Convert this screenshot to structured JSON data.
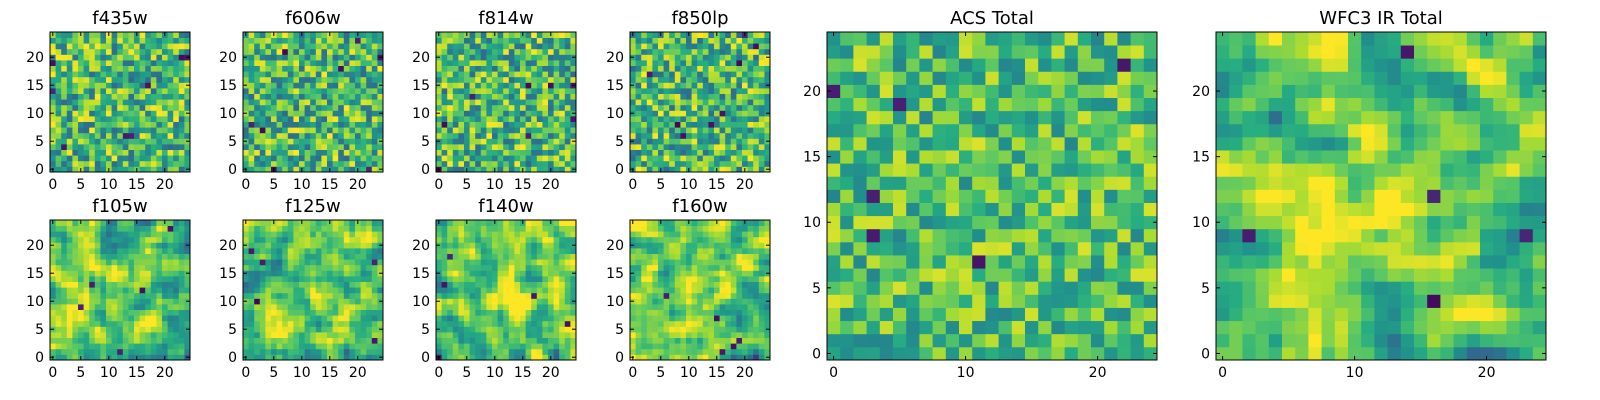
{
  "chart_data": [
    {
      "type": "heatmap",
      "title": "f435w",
      "xlim": [
        0,
        24
      ],
      "ylim": [
        0,
        24
      ],
      "xticks": [
        0,
        5,
        10,
        15,
        20
      ],
      "yticks": [
        0,
        5,
        10,
        15,
        20
      ],
      "seed": 11,
      "style": "noise",
      "colormap": "viridis"
    },
    {
      "type": "heatmap",
      "title": "f606w",
      "xlim": [
        0,
        24
      ],
      "ylim": [
        0,
        24
      ],
      "xticks": [
        0,
        5,
        10,
        15,
        20
      ],
      "yticks": [
        0,
        5,
        10,
        15,
        20
      ],
      "seed": 23,
      "style": "noise",
      "colormap": "viridis"
    },
    {
      "type": "heatmap",
      "title": "f814w",
      "xlim": [
        0,
        24
      ],
      "ylim": [
        0,
        24
      ],
      "xticks": [
        0,
        5,
        10,
        15,
        20
      ],
      "yticks": [
        0,
        5,
        10,
        15,
        20
      ],
      "seed": 37,
      "style": "noise",
      "colormap": "viridis"
    },
    {
      "type": "heatmap",
      "title": "f850lp",
      "xlim": [
        0,
        24
      ],
      "ylim": [
        0,
        24
      ],
      "xticks": [
        0,
        5,
        10,
        15,
        20
      ],
      "yticks": [
        0,
        5,
        10,
        15,
        20
      ],
      "seed": 41,
      "style": "noise",
      "colormap": "viridis"
    },
    {
      "type": "heatmap",
      "title": "f105w",
      "xlim": [
        0,
        24
      ],
      "ylim": [
        0,
        24
      ],
      "xticks": [
        0,
        5,
        10,
        15,
        20
      ],
      "yticks": [
        0,
        5,
        10,
        15,
        20
      ],
      "seed": 53,
      "style": "smooth",
      "colormap": "viridis"
    },
    {
      "type": "heatmap",
      "title": "f125w",
      "xlim": [
        0,
        24
      ],
      "ylim": [
        0,
        24
      ],
      "xticks": [
        0,
        5,
        10,
        15,
        20
      ],
      "yticks": [
        0,
        5,
        10,
        15,
        20
      ],
      "seed": 67,
      "style": "smooth",
      "colormap": "viridis"
    },
    {
      "type": "heatmap",
      "title": "f140w",
      "xlim": [
        0,
        24
      ],
      "ylim": [
        0,
        24
      ],
      "xticks": [
        0,
        5,
        10,
        15,
        20
      ],
      "yticks": [
        0,
        5,
        10,
        15,
        20
      ],
      "seed": 79,
      "style": "smooth-blob",
      "colormap": "viridis"
    },
    {
      "type": "heatmap",
      "title": "f160w",
      "xlim": [
        0,
        24
      ],
      "ylim": [
        0,
        24
      ],
      "xticks": [
        0,
        5,
        10,
        15,
        20
      ],
      "yticks": [
        0,
        5,
        10,
        15,
        20
      ],
      "seed": 83,
      "style": "smooth-blob",
      "colormap": "viridis"
    },
    {
      "type": "heatmap",
      "title": "ACS Total",
      "xlim": [
        0,
        24
      ],
      "ylim": [
        0,
        24
      ],
      "xticks": [
        0,
        10,
        20
      ],
      "yticks": [
        0,
        5,
        10,
        15,
        20
      ],
      "seed": 97,
      "style": "noise-mid",
      "colormap": "viridis"
    },
    {
      "type": "heatmap",
      "title": "WFC3 IR Total",
      "xlim": [
        0,
        24
      ],
      "ylim": [
        0,
        24
      ],
      "xticks": [
        0,
        10,
        20
      ],
      "yticks": [
        0,
        5,
        10,
        15,
        20
      ],
      "seed": 101,
      "style": "smooth-blob",
      "colormap": "viridis"
    }
  ]
}
